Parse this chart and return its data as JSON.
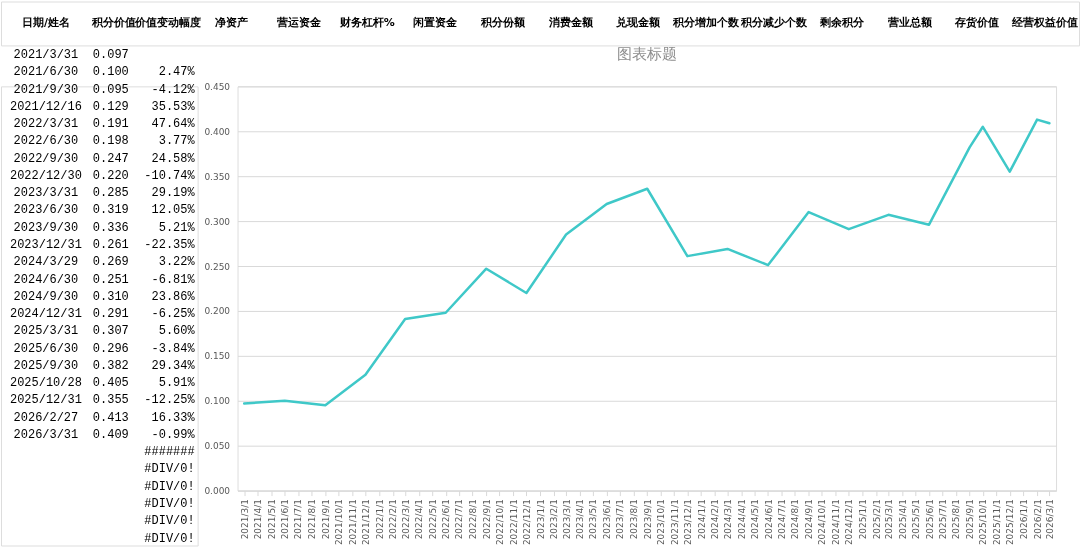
{
  "chart_data": {
    "type": "line",
    "title": "图表标题",
    "x": [
      "2021-03",
      "2021-06",
      "2021-09",
      "2021-12",
      "2022-03",
      "2022-06",
      "2022-09",
      "2022-12",
      "2023-03",
      "2023-06",
      "2023-09",
      "2023-12",
      "2024-03",
      "2024-06",
      "2024-09",
      "2024-12",
      "2025-03",
      "2025-06",
      "2025-09",
      "2025-10",
      "2025-12",
      "2026-02",
      "2026-03"
    ],
    "series": [
      {
        "color": "#3fc8c8",
        "values": [
          0.097,
          0.1,
          0.095,
          0.129,
          0.191,
          0.198,
          0.247,
          0.22,
          0.285,
          0.319,
          0.336,
          0.261,
          0.269,
          0.251,
          0.31,
          0.291,
          0.307,
          0.296,
          0.382,
          0.405,
          0.355,
          0.413,
          0.409
        ]
      }
    ],
    "xlim": [
      "2021-02-14",
      "2026-03-16"
    ],
    "xticks": [
      {
        "value": "2021-03",
        "label": "2021/3/1"
      },
      {
        "value": "2021-04",
        "label": "2021/4/1"
      },
      {
        "value": "2021-05",
        "label": "2021/5/1"
      },
      {
        "value": "2021-06",
        "label": "2021/6/1"
      },
      {
        "value": "2021-07",
        "label": "2021/7/1"
      },
      {
        "value": "2021-08",
        "label": "2021/8/1"
      },
      {
        "value": "2021-09",
        "label": "2021/9/1"
      },
      {
        "value": "2021-10",
        "label": "2021/10/1"
      },
      {
        "value": "2021-11",
        "label": "2021/11/1"
      },
      {
        "value": "2021-12",
        "label": "2021/12/1"
      },
      {
        "value": "2022-01",
        "label": "2022/1/1"
      },
      {
        "value": "2022-02",
        "label": "2022/2/1"
      },
      {
        "value": "2022-03",
        "label": "2022/3/1"
      },
      {
        "value": "2022-04",
        "label": "2022/4/1"
      },
      {
        "value": "2022-05",
        "label": "2022/5/1"
      },
      {
        "value": "2022-06",
        "label": "2022/6/1"
      },
      {
        "value": "2022-07",
        "label": "2022/7/1"
      },
      {
        "value": "2022-08",
        "label": "2022/8/1"
      },
      {
        "value": "2022-09",
        "label": "2022/9/1"
      },
      {
        "value": "2022-10",
        "label": "2022/10/1"
      },
      {
        "value": "2022-11",
        "label": "2022/11/1"
      },
      {
        "value": "2022-12",
        "label": "2022/12/1"
      },
      {
        "value": "2023-01",
        "label": "2023/1/1"
      },
      {
        "value": "2023-02",
        "label": "2023/2/1"
      },
      {
        "value": "2023-03",
        "label": "2023/3/1"
      },
      {
        "value": "2023-04",
        "label": "2023/4/1"
      },
      {
        "value": "2023-05",
        "label": "2023/5/1"
      },
      {
        "value": "2023-06",
        "label": "2023/6/1"
      },
      {
        "value": "2023-07",
        "label": "2023/7/1"
      },
      {
        "value": "2023-08",
        "label": "2023/8/1"
      },
      {
        "value": "2023-09",
        "label": "2023/9/1"
      },
      {
        "value": "2023-10",
        "label": "2023/10/1"
      },
      {
        "value": "2023-11",
        "label": "2023/11/1"
      },
      {
        "value": "2023-12",
        "label": "2023/12/1"
      },
      {
        "value": "2024-01",
        "label": "2024/1/1"
      },
      {
        "value": "2024-02",
        "label": "2024/2/1"
      },
      {
        "value": "2024-03",
        "label": "2024/3/1"
      },
      {
        "value": "2024-04",
        "label": "2024/4/1"
      },
      {
        "value": "2024-05",
        "label": "2024/5/1"
      },
      {
        "value": "2024-06",
        "label": "2024/6/1"
      },
      {
        "value": "2024-07",
        "label": "2024/7/1"
      },
      {
        "value": "2024-08",
        "label": "2024/8/1"
      },
      {
        "value": "2024-09",
        "label": "2024/9/1"
      },
      {
        "value": "2024-10",
        "label": "2024/10/1"
      },
      {
        "value": "2024-11",
        "label": "2024/11/1"
      },
      {
        "value": "2024-12",
        "label": "2024/12/1"
      },
      {
        "value": "2025-01",
        "label": "2025/1/1"
      },
      {
        "value": "2025-02",
        "label": "2025/2/1"
      },
      {
        "value": "2025-03",
        "label": "2025/3/1"
      },
      {
        "value": "2025-04",
        "label": "2025/4/1"
      },
      {
        "value": "2025-05",
        "label": "2025/5/1"
      },
      {
        "value": "2025-06",
        "label": "2025/6/1"
      },
      {
        "value": "2025-07",
        "label": "2025/7/1"
      },
      {
        "value": "2025-08",
        "label": "2025/8/1"
      },
      {
        "value": "2025-09",
        "label": "2025/9/1"
      },
      {
        "value": "2025-10",
        "label": "2025/10/1"
      },
      {
        "value": "2025-11",
        "label": "2025/11/1"
      },
      {
        "value": "2025-12",
        "label": "2025/12/1"
      },
      {
        "value": "2026-01",
        "label": "2026/1/1"
      },
      {
        "value": "2026-02",
        "label": "2026/2/1"
      },
      {
        "value": "2026-03",
        "label": "2026/3/1"
      }
    ],
    "ylim": [
      0,
      0.45
    ],
    "yticks": [
      {
        "value": 0,
        "label": "0.000"
      },
      {
        "value": 0.05,
        "label": "0.050"
      },
      {
        "value": 0.1,
        "label": "0.100"
      },
      {
        "value": 0.15,
        "label": "0.150"
      },
      {
        "value": 0.2,
        "label": "0.200"
      },
      {
        "value": 0.25,
        "label": "0.250"
      },
      {
        "value": 0.3,
        "label": "0.300"
      },
      {
        "value": 0.35,
        "label": "0.350"
      },
      {
        "value": 0.4,
        "label": "0.400"
      },
      {
        "value": 0.45,
        "label": "0.450"
      }
    ],
    "grid": "y",
    "marker": "none",
    "line_style": "solid",
    "annotations": [
      "日期/姓名\t积分价值\t价值变动幅度\t净资产\t营运资金\t财务杠杆%\t闲置资金\t积分份额\t消费金额\t兑现金额\t积分增加个数\t积分减少个数\t剩余积分\t营业总额\t存货价值\t经营权益价值",
      "2021/3/31\t0.097",
      "2021/6/30\t0.100\t2.47%",
      "2021/9/30\t0.095\t-4.12%",
      "2021/12/16\t0.129\t35.53%",
      "2022/3/31\t0.191\t47.64%",
      "2022/6/30\t0.198\t3.77%",
      "2022/9/30\t0.247\t24.58%",
      "2022/12/30\t0.220\t-10.74%",
      "2023/3/31\t0.285\t29.19%",
      "2023/6/30\t0.319\t12.05%",
      "2023/9/30\t0.336\t5.21%",
      "2023/12/31\t0.261\t-22.35%",
      "2024/3/29\t0.269\t3.22%",
      "2024/6/30\t0.251\t-6.81%",
      "2024/9/30\t0.310\t23.86%",
      "2024/12/31\t0.291\t-6.25%",
      "2025/3/31\t0.307\t5.60%",
      "2025/6/30\t0.296\t-3.84%",
      "2025/9/30\t0.382\t29.34%",
      "2025/10/28\t0.405\t5.91%",
      "2025/12/31\t0.355\t-12.25%",
      "2026/2/27\t0.413\t16.33%",
      "2026/3/31\t0.409\t-0.99%",
      "\t\t#######",
      "\t\t#DIV/0!",
      "\t\t#DIV/0!",
      "\t\t#DIV/0!",
      "\t\t#DIV/0!",
      "\t\t#DIV/0!"
    ]
  }
}
